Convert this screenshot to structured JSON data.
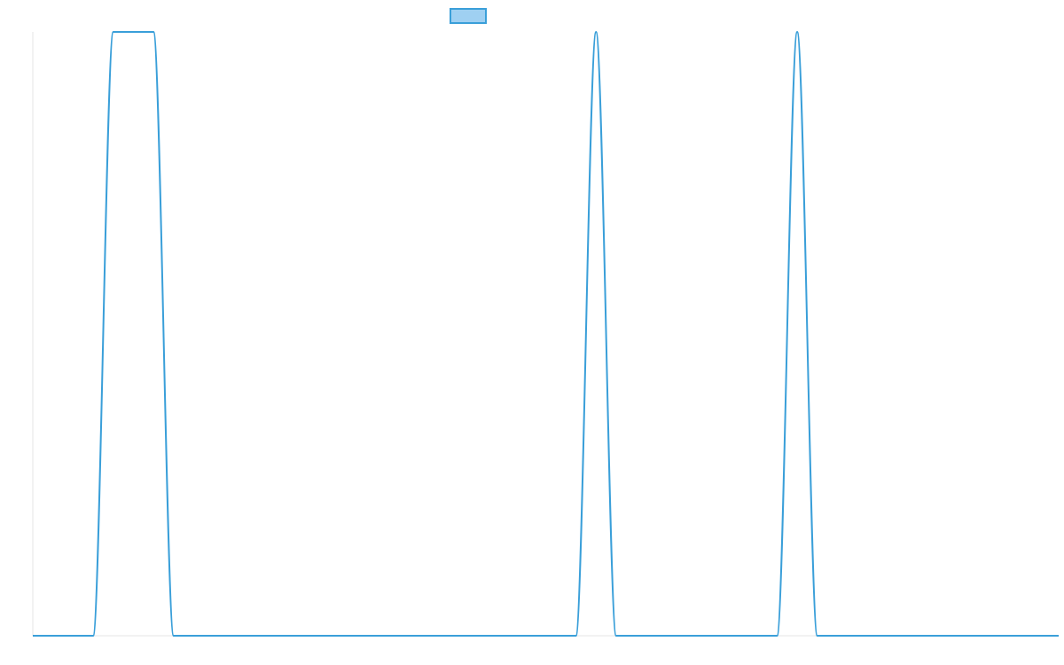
{
  "colors": {
    "line": "#3a9fd9",
    "legend_fill": "#9fd0f2",
    "axis": "#e6e6e6",
    "background": "#ffffff"
  },
  "chart_data": {
    "type": "line",
    "title": "",
    "xlabel": "",
    "ylabel": "",
    "grid": false,
    "legend": {
      "placement": "top-center",
      "entries": [
        ""
      ]
    },
    "xlim": [
      0,
      51
    ],
    "ylim": [
      0,
      1
    ],
    "x": [
      0,
      1,
      2,
      3,
      4,
      5,
      6,
      7,
      8,
      9,
      10,
      11,
      12,
      13,
      14,
      15,
      16,
      17,
      18,
      19,
      20,
      21,
      22,
      23,
      24,
      25,
      26,
      27,
      28,
      29,
      30,
      31,
      32,
      33,
      34,
      35,
      36,
      37,
      38,
      39,
      40,
      41,
      42,
      43,
      44,
      45,
      46,
      47,
      48,
      49,
      50,
      51
    ],
    "series": [
      {
        "values": [
          0,
          0,
          0,
          0,
          1,
          1,
          1,
          0,
          0,
          0,
          0,
          0,
          0,
          0,
          0,
          0,
          0,
          0,
          0,
          0,
          0,
          0,
          0,
          0,
          0,
          0,
          0,
          0,
          1,
          0,
          0,
          0,
          0,
          0,
          0,
          0,
          0,
          0,
          1,
          0,
          0,
          0,
          0,
          0,
          0,
          0,
          0,
          0,
          0,
          0,
          0,
          0
        ]
      }
    ]
  }
}
